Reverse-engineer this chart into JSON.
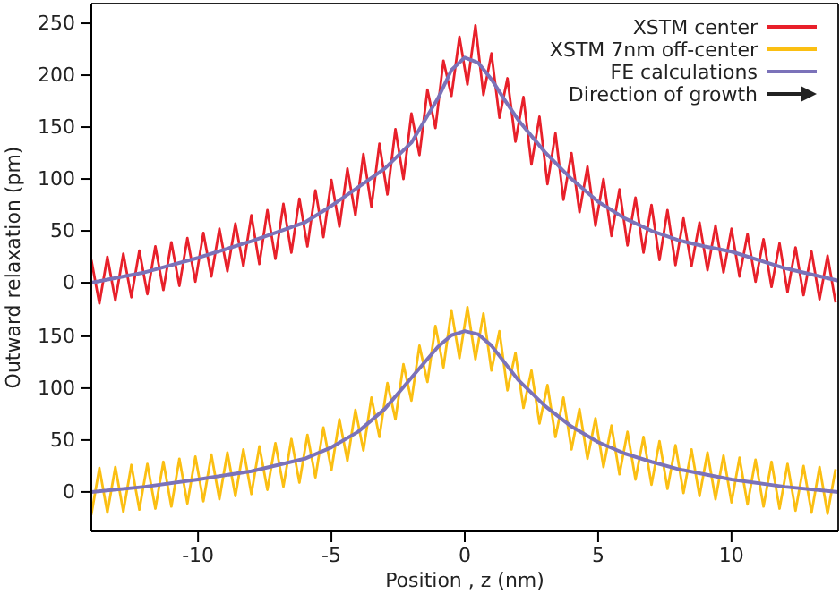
{
  "chart_data": [
    {
      "type": "line",
      "ylabel": "Outward relaxation (pm)",
      "xlim": [
        -14,
        14
      ],
      "ylim": [
        -38,
        269
      ],
      "yticks": [
        0,
        50,
        100,
        150,
        200,
        250
      ],
      "tick_labels": "y",
      "legend": "top right",
      "grid": false,
      "marker": "none",
      "line_style": "solid",
      "annotations": [
        "Direction of growth"
      ],
      "series": [
        {
          "name": "XSTM center",
          "color": "#e8202a",
          "x": [
            -14.0,
            -13.7,
            -13.4,
            -13.1,
            -12.8,
            -12.5,
            -12.2,
            -11.9,
            -11.6,
            -11.3,
            -11.0,
            -10.7,
            -10.4,
            -10.1,
            -9.8,
            -9.5,
            -9.2,
            -8.9,
            -8.6,
            -8.3,
            -8.0,
            -7.7,
            -7.4,
            -7.1,
            -6.8,
            -6.5,
            -6.2,
            -5.9,
            -5.6,
            -5.3,
            -5.0,
            -4.7,
            -4.4,
            -4.1,
            -3.8,
            -3.5,
            -3.2,
            -2.9,
            -2.6,
            -2.3,
            -2.0,
            -1.7,
            -1.4,
            -1.1,
            -0.8,
            -0.5,
            -0.2,
            0.1,
            0.4,
            0.7,
            1.0,
            1.3,
            1.6,
            1.9,
            2.2,
            2.5,
            2.8,
            3.1,
            3.4,
            3.7,
            4.0,
            4.3,
            4.6,
            4.9,
            5.2,
            5.5,
            5.8,
            6.1,
            6.4,
            6.7,
            7.0,
            7.3,
            7.6,
            7.9,
            8.2,
            8.5,
            8.8,
            9.1,
            9.4,
            9.7,
            10.0,
            10.3,
            10.6,
            10.9,
            11.2,
            11.5,
            11.8,
            12.1,
            12.4,
            12.7,
            13.0,
            13.3,
            13.6,
            13.9
          ],
          "values": [
            22,
            -20,
            25,
            -17,
            28,
            -14,
            31,
            -11,
            35,
            -7,
            39,
            -3,
            43,
            1,
            48,
            6,
            52,
            11,
            57,
            16,
            65,
            18,
            70,
            23,
            76,
            29,
            81,
            35,
            89,
            44,
            99,
            54,
            110,
            65,
            124,
            73,
            134,
            85,
            148,
            100,
            163,
            123,
            186,
            149,
            214,
            180,
            237,
            191,
            248,
            181,
            221,
            159,
            197,
            136,
            179,
            114,
            160,
            95,
            144,
            80,
            125,
            68,
            112,
            55,
            100,
            45,
            90,
            36,
            82,
            29,
            75,
            22,
            70,
            17,
            62,
            16,
            58,
            12,
            55,
            10,
            52,
            6,
            47,
            1,
            42,
            -4,
            38,
            -9,
            34,
            -12,
            30,
            -16,
            26,
            -19
          ]
        },
        {
          "name": "FE calculations",
          "color": "#7b72b9",
          "x": [
            -14,
            -12,
            -10,
            -8,
            -6,
            -5,
            -4,
            -3,
            -2,
            -1,
            -0.5,
            0,
            0.5,
            1,
            1.5,
            2,
            3,
            4,
            5,
            6,
            7,
            8,
            9,
            10,
            12,
            14
          ],
          "values": [
            0,
            10,
            24,
            40,
            58,
            74,
            92,
            110,
            135,
            178,
            205,
            217,
            212,
            196,
            176,
            157,
            126,
            100,
            78,
            62,
            50,
            41,
            35,
            30,
            14,
            2
          ]
        }
      ]
    },
    {
      "type": "line",
      "xlabel": "Position , z (nm)",
      "xlim": [
        -14,
        14
      ],
      "xticks": [
        -10,
        -5,
        0,
        5,
        10
      ],
      "ylim": [
        -38,
        185
      ],
      "yticks": [
        0,
        50,
        100,
        150
      ],
      "grid": false,
      "marker": "none",
      "line_style": "solid",
      "series": [
        {
          "name": "XSTM 7nm off-center",
          "color": "#fbbf12",
          "x": [
            -14.0,
            -13.7,
            -13.4,
            -13.1,
            -12.8,
            -12.5,
            -12.2,
            -11.9,
            -11.6,
            -11.3,
            -11.0,
            -10.7,
            -10.4,
            -10.1,
            -9.8,
            -9.5,
            -9.2,
            -8.9,
            -8.6,
            -8.3,
            -8.0,
            -7.7,
            -7.4,
            -7.1,
            -6.8,
            -6.5,
            -6.2,
            -5.9,
            -5.6,
            -5.3,
            -5.0,
            -4.7,
            -4.4,
            -4.1,
            -3.8,
            -3.5,
            -3.2,
            -2.9,
            -2.6,
            -2.3,
            -2.0,
            -1.7,
            -1.4,
            -1.1,
            -0.8,
            -0.5,
            -0.2,
            0.1,
            0.4,
            0.7,
            1.0,
            1.3,
            1.6,
            1.9,
            2.2,
            2.5,
            2.8,
            3.1,
            3.4,
            3.7,
            4.0,
            4.3,
            4.6,
            4.9,
            5.2,
            5.5,
            5.8,
            6.1,
            6.4,
            6.7,
            7.0,
            7.3,
            7.6,
            7.9,
            8.2,
            8.5,
            8.8,
            9.1,
            9.4,
            9.7,
            10.0,
            10.3,
            10.6,
            10.9,
            11.2,
            11.5,
            11.8,
            12.1,
            12.4,
            12.7,
            13.0,
            13.3,
            13.6,
            13.9
          ],
          "values": [
            -22,
            23,
            -20,
            24,
            -19,
            26,
            -17,
            27,
            -16,
            29,
            -14,
            32,
            -11,
            34,
            -9,
            36,
            -7,
            38,
            -4,
            41,
            -2,
            44,
            2,
            47,
            5,
            51,
            9,
            55,
            14,
            62,
            21,
            70,
            30,
            79,
            40,
            91,
            53,
            105,
            70,
            123,
            88,
            141,
            106,
            160,
            120,
            175,
            129,
            178,
            128,
            172,
            117,
            155,
            98,
            134,
            81,
            117,
            66,
            103,
            53,
            91,
            41,
            80,
            32,
            71,
            24,
            64,
            17,
            58,
            12,
            53,
            7,
            49,
            3,
            45,
            -1,
            41,
            -4,
            38,
            -7,
            35,
            -10,
            33,
            -12,
            31,
            -14,
            29,
            -16,
            27,
            -18,
            25,
            -20,
            24,
            -21,
            22
          ]
        },
        {
          "color": "#7b72b9",
          "x": [
            -14,
            -12,
            -10,
            -8,
            -6,
            -5,
            -4,
            -3,
            -2,
            -1,
            -0.5,
            0,
            0.5,
            1,
            2,
            3,
            4,
            5,
            6,
            7,
            8,
            9,
            10,
            12,
            14
          ],
          "values": [
            0,
            5,
            12,
            20,
            32,
            43,
            58,
            80,
            110,
            140,
            151,
            155,
            152,
            141,
            108,
            83,
            63,
            48,
            37,
            29,
            22,
            17,
            12,
            5,
            0
          ]
        }
      ]
    }
  ]
}
